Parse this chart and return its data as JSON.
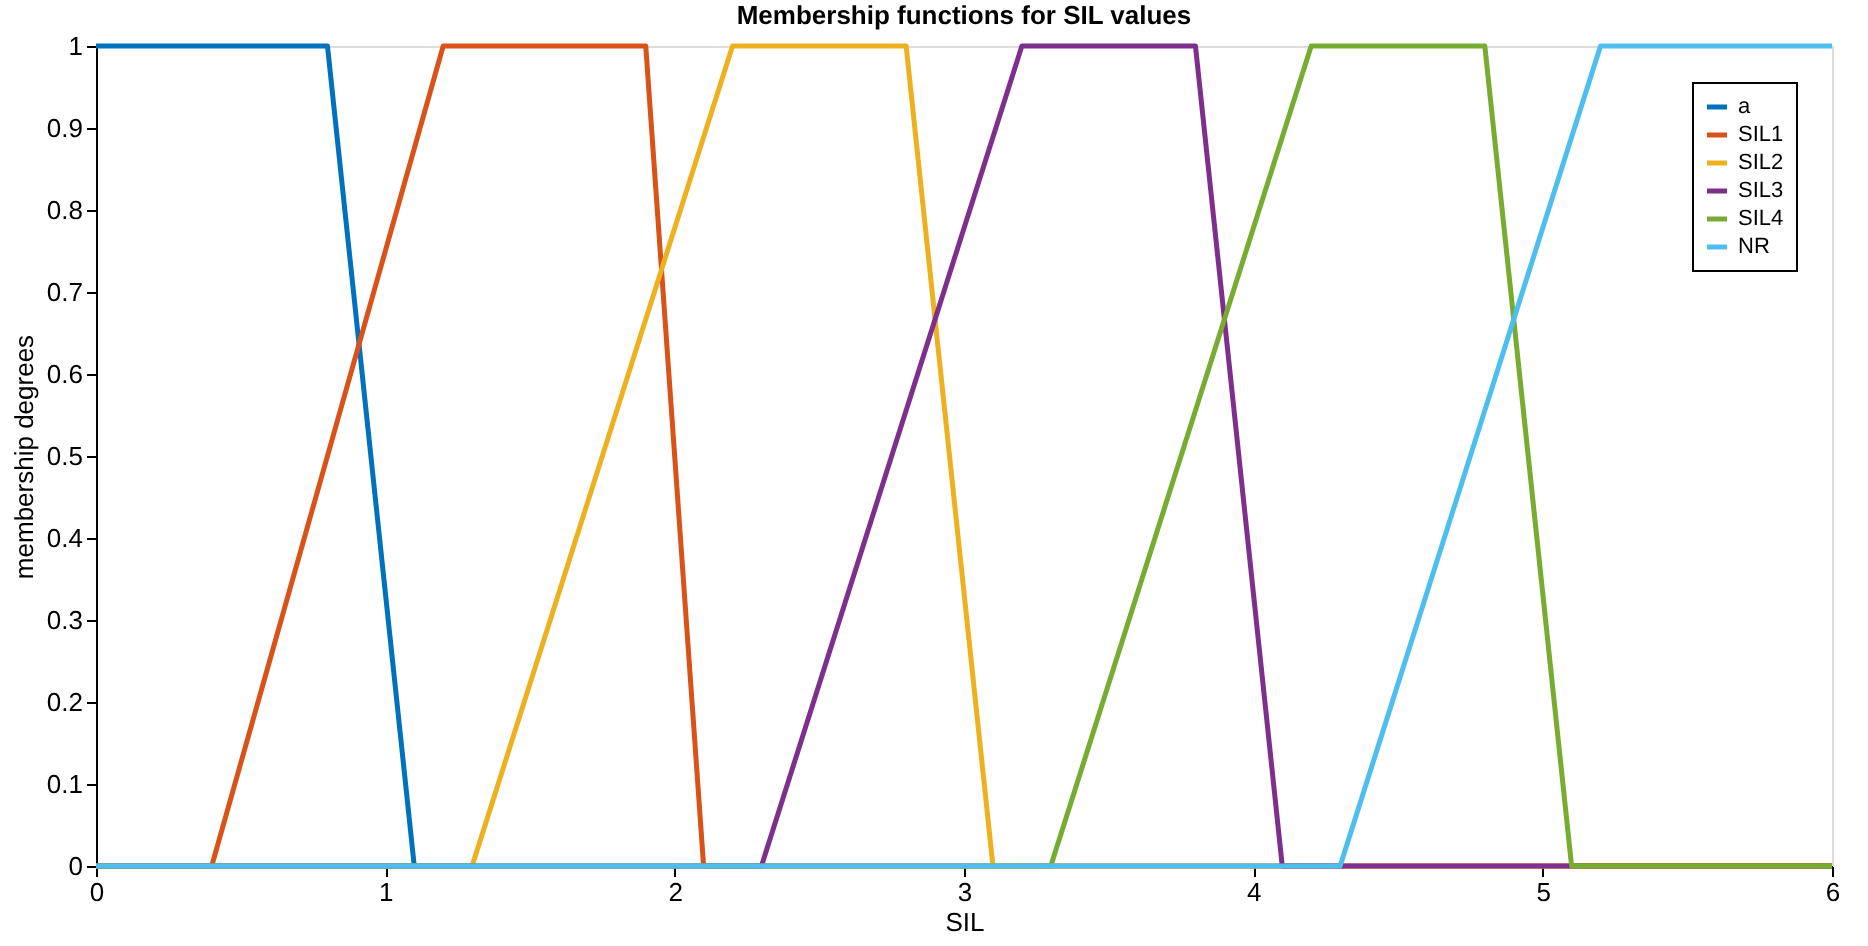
{
  "chart_data": {
    "type": "line",
    "title": "Membership functions for SIL values",
    "xlabel": "SIL",
    "ylabel": "membership degrees",
    "series": [
      {
        "name": "a",
        "color": "#0072bd",
        "x": [
          0,
          0.8,
          1.1
        ],
        "values": [
          1,
          1,
          0
        ]
      },
      {
        "name": "SIL1",
        "color": "#d95319",
        "x": [
          0,
          0.4,
          1.2,
          1.9,
          2.1,
          6
        ],
        "values": [
          0,
          0,
          1,
          1,
          0,
          0
        ]
      },
      {
        "name": "SIL2",
        "color": "#edb120",
        "x": [
          0,
          1.3,
          2.2,
          2.8,
          3.1,
          6
        ],
        "values": [
          0,
          0,
          1,
          1,
          0,
          0
        ]
      },
      {
        "name": "SIL3",
        "color": "#7e2f8e",
        "x": [
          0,
          2.3,
          3.2,
          3.8,
          4.1,
          6
        ],
        "values": [
          0,
          0,
          1,
          1,
          0,
          0
        ]
      },
      {
        "name": "SIL4",
        "color": "#77ac30",
        "x": [
          0,
          3.3,
          4.2,
          4.8,
          5.1,
          6
        ],
        "values": [
          0,
          0,
          1,
          1,
          0,
          0
        ]
      },
      {
        "name": "NR",
        "color": "#4dbeee",
        "x": [
          0,
          4.3,
          5.2,
          6
        ],
        "values": [
          0,
          0,
          1,
          1
        ]
      }
    ],
    "xlim": [
      0,
      6
    ],
    "xticks": [
      0,
      1,
      2,
      3,
      4,
      5,
      6
    ],
    "ylim": [
      0,
      1
    ],
    "yticks": [
      0,
      0.1,
      0.2,
      0.3,
      0.4,
      0.5,
      0.6,
      0.7,
      0.8,
      0.9,
      1
    ],
    "grid": false,
    "legend": "top right",
    "marker": "none",
    "line_style": "solid"
  }
}
